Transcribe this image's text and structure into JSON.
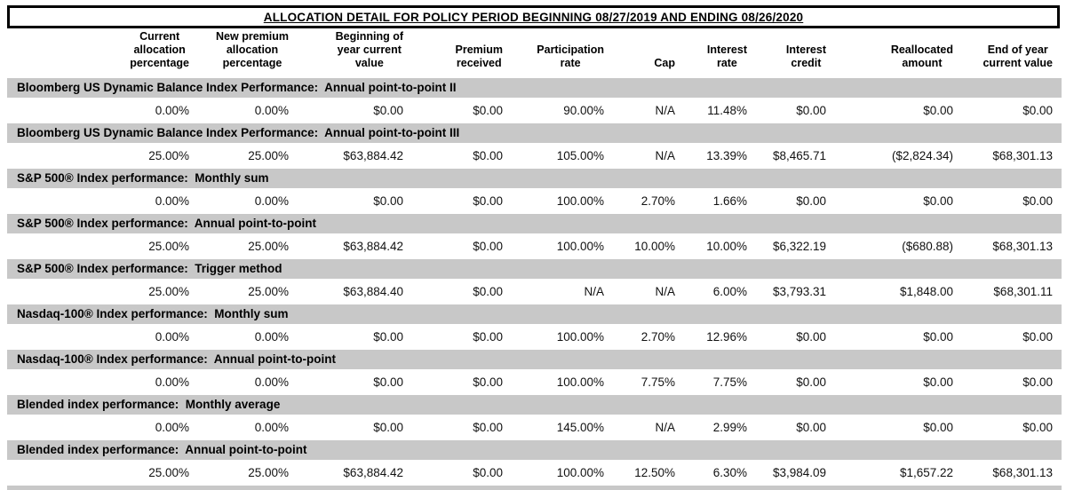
{
  "title": "ALLOCATION DETAIL FOR POLICY PERIOD BEGINNING 08/27/2019 AND ENDING 08/26/2020",
  "colors": {
    "band_gray": "#c8c8c8",
    "border_black": "#000000"
  },
  "table": {
    "columns": [
      "Current\nallocation\npercentage",
      "New premium\nallocation\npercentage",
      "Beginning of\nyear current\nvalue",
      "Premium\nreceived",
      "Participation\nrate",
      "Cap",
      "Interest\nrate",
      "Interest\ncredit",
      "Reallocated\namount",
      "End of year\ncurrent value"
    ],
    "column_keys": [
      "current-allocation-percentage",
      "new-premium-allocation-percentage",
      "beginning-of-year-current-value",
      "premium-received",
      "participation-rate",
      "cap",
      "interest-rate",
      "interest-credit",
      "reallocated-amount",
      "end-of-year-current-value"
    ],
    "sections": [
      {
        "label": "Bloomberg US Dynamic Balance Index Performance:  Annual point-to-point II",
        "values": [
          "0.00%",
          "0.00%",
          "$0.00",
          "$0.00",
          "90.00%",
          "N/A",
          "11.48%",
          "$0.00",
          "$0.00",
          "$0.00"
        ]
      },
      {
        "label": "Bloomberg US Dynamic Balance Index Performance:  Annual point-to-point III",
        "values": [
          "25.00%",
          "25.00%",
          "$63,884.42",
          "$0.00",
          "105.00%",
          "N/A",
          "13.39%",
          "$8,465.71",
          "($2,824.34)",
          "$68,301.13"
        ]
      },
      {
        "label": "S&P 500® Index performance:  Monthly sum",
        "values": [
          "0.00%",
          "0.00%",
          "$0.00",
          "$0.00",
          "100.00%",
          "2.70%",
          "1.66%",
          "$0.00",
          "$0.00",
          "$0.00"
        ]
      },
      {
        "label": "S&P 500® Index performance:  Annual point-to-point",
        "values": [
          "25.00%",
          "25.00%",
          "$63,884.42",
          "$0.00",
          "100.00%",
          "10.00%",
          "10.00%",
          "$6,322.19",
          "($680.88)",
          "$68,301.13"
        ]
      },
      {
        "label": "S&P 500® Index performance:  Trigger method",
        "values": [
          "25.00%",
          "25.00%",
          "$63,884.40",
          "$0.00",
          "N/A",
          "N/A",
          "6.00%",
          "$3,793.31",
          "$1,848.00",
          "$68,301.11"
        ]
      },
      {
        "label": "Nasdaq-100® Index performance:  Monthly sum",
        "values": [
          "0.00%",
          "0.00%",
          "$0.00",
          "$0.00",
          "100.00%",
          "2.70%",
          "12.96%",
          "$0.00",
          "$0.00",
          "$0.00"
        ]
      },
      {
        "label": "Nasdaq-100® Index performance:  Annual point-to-point",
        "values": [
          "0.00%",
          "0.00%",
          "$0.00",
          "$0.00",
          "100.00%",
          "7.75%",
          "7.75%",
          "$0.00",
          "$0.00",
          "$0.00"
        ]
      },
      {
        "label": "Blended index performance:  Monthly average",
        "values": [
          "0.00%",
          "0.00%",
          "$0.00",
          "$0.00",
          "145.00%",
          "N/A",
          "2.99%",
          "$0.00",
          "$0.00",
          "$0.00"
        ]
      },
      {
        "label": "Blended index performance:  Annual point-to-point",
        "values": [
          "25.00%",
          "25.00%",
          "$63,884.42",
          "$0.00",
          "100.00%",
          "12.50%",
          "6.30%",
          "$3,984.09",
          "$1,657.22",
          "$68,301.13"
        ]
      }
    ]
  }
}
